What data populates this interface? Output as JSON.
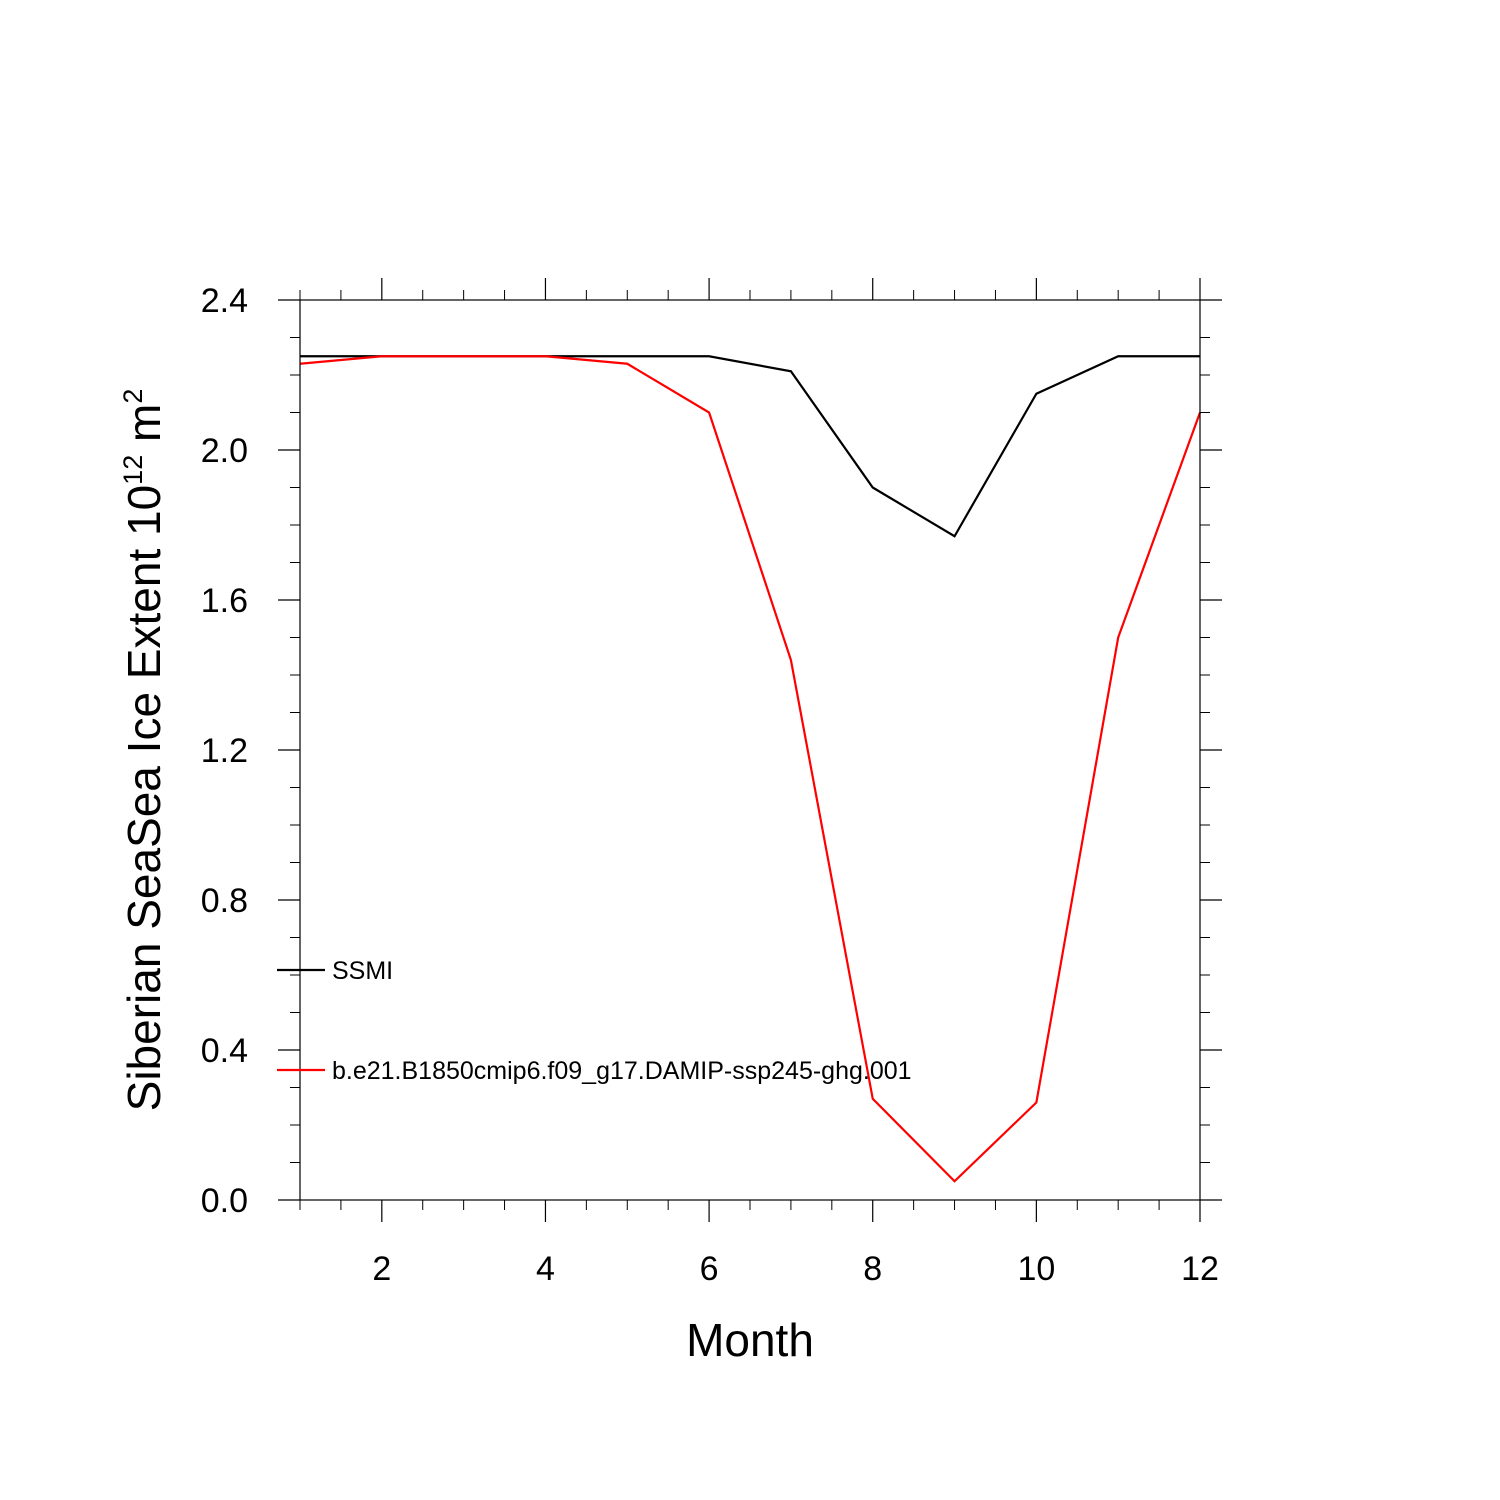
{
  "chart_data": {
    "type": "line",
    "xlabel": "Month",
    "ylabel_main": "Siberian SeaSea Ice Extent 10",
    "ylabel_exp": "12",
    "ylabel_unit": " m",
    "ylabel_unit_exp": "2",
    "xlim": [
      1,
      12
    ],
    "ylim": [
      0,
      2.4
    ],
    "x_ticks": [
      2,
      4,
      6,
      8,
      10,
      12
    ],
    "x_tick_labels": [
      "2",
      "4",
      "6",
      "8",
      "10",
      "12"
    ],
    "y_ticks": [
      0,
      0.4,
      0.8,
      1.2,
      1.6,
      2.0,
      2.4
    ],
    "y_tick_labels": [
      "0.0",
      "0.4",
      "0.8",
      "1.2",
      "1.6",
      "2.0",
      "2.4"
    ],
    "grid": false,
    "legend_placement": "lower-left-inside",
    "x": [
      1,
      2,
      3,
      4,
      5,
      6,
      7,
      8,
      9,
      10,
      11,
      12
    ],
    "series": [
      {
        "name": "SSMI",
        "color": "#000000",
        "values": [
          2.25,
          2.25,
          2.25,
          2.25,
          2.25,
          2.25,
          2.21,
          1.9,
          1.77,
          2.15,
          2.25,
          2.25
        ]
      },
      {
        "name": "b.e21.B1850cmip6.f09_g17.DAMIP-ssp245-ghg.001",
        "color": "#ff0000",
        "values": [
          2.23,
          2.25,
          2.25,
          2.25,
          2.23,
          2.1,
          1.44,
          0.27,
          0.05,
          0.26,
          1.5,
          2.1
        ]
      }
    ]
  }
}
